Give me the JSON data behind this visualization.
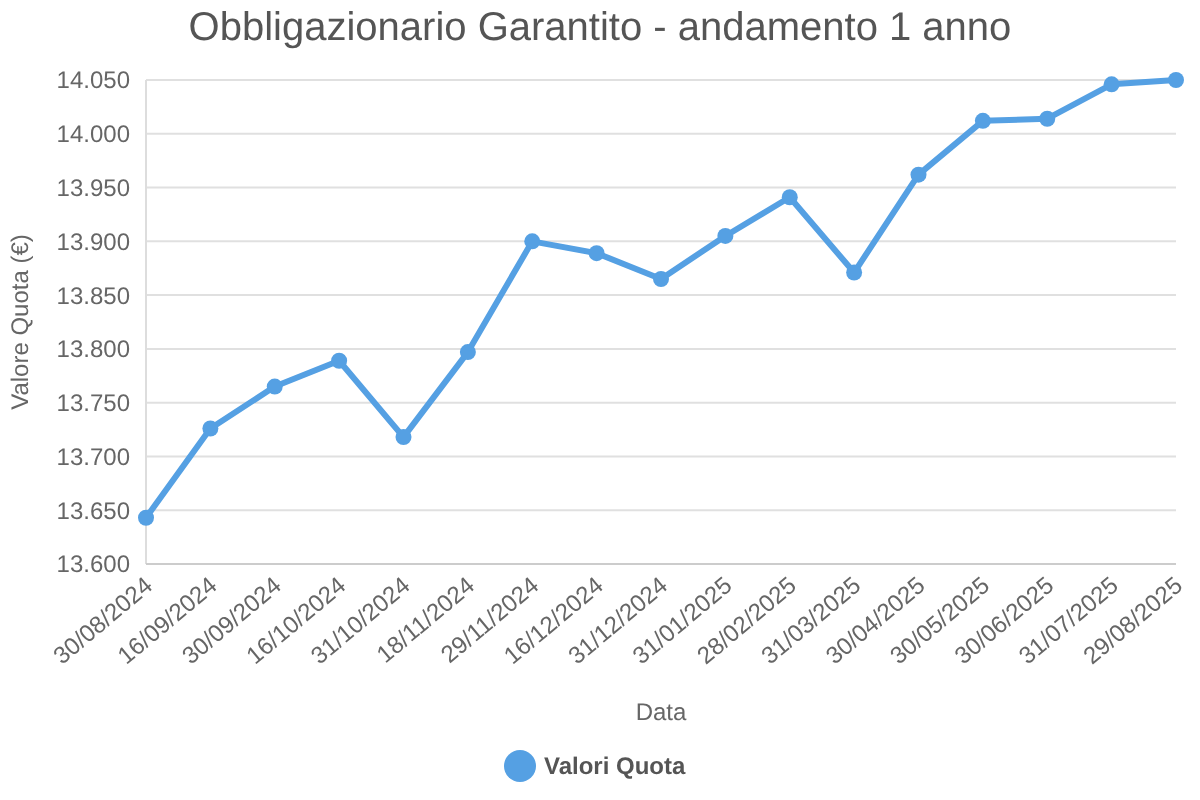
{
  "chart_data": {
    "type": "line",
    "title": "Obbligazionario Garantito - andamento 1 anno",
    "xlabel": "Data",
    "ylabel": "Valore Quota (€)",
    "categories": [
      "30/08/2024",
      "16/09/2024",
      "30/09/2024",
      "16/10/2024",
      "31/10/2024",
      "18/11/2024",
      "29/11/2024",
      "16/12/2024",
      "31/12/2024",
      "31/01/2025",
      "28/02/2025",
      "31/03/2025",
      "30/04/2025",
      "30/05/2025",
      "30/06/2025",
      "31/07/2025",
      "29/08/2025"
    ],
    "series": [
      {
        "name": "Valori Quota",
        "color": "#55a0e3",
        "values": [
          13.643,
          13.726,
          13.765,
          13.789,
          13.718,
          13.797,
          13.9,
          13.889,
          13.865,
          13.905,
          13.941,
          13.871,
          13.962,
          14.012,
          14.014,
          14.046,
          14.05
        ]
      }
    ],
    "ylim": [
      13.6,
      14.05
    ],
    "yticks": [
      {
        "value": 13.6,
        "label": "13.600"
      },
      {
        "value": 13.65,
        "label": "13.650"
      },
      {
        "value": 13.7,
        "label": "13.700"
      },
      {
        "value": 13.75,
        "label": "13.750"
      },
      {
        "value": 13.8,
        "label": "13.800"
      },
      {
        "value": 13.85,
        "label": "13.850"
      },
      {
        "value": 13.9,
        "label": "13.900"
      },
      {
        "value": 13.95,
        "label": "13.950"
      },
      {
        "value": 14.0,
        "label": "14.000"
      },
      {
        "value": 14.05,
        "label": "14.050"
      }
    ],
    "grid": "y",
    "legend": "bottom",
    "marker": "circle",
    "line_style": "solid"
  }
}
